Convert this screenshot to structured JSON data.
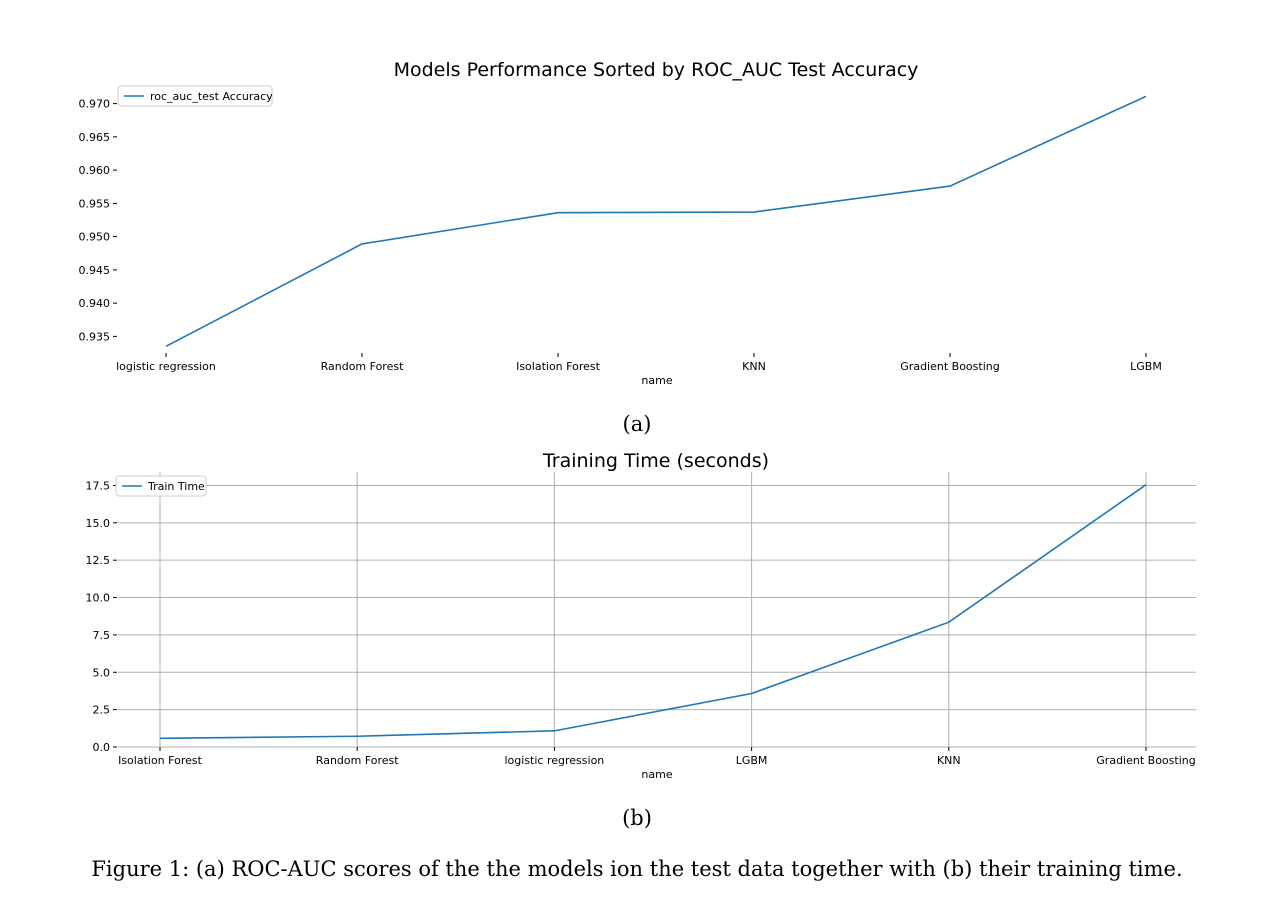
{
  "chart_data": [
    {
      "type": "line",
      "title": "Models Performance Sorted by ROC_AUC Test Accuracy",
      "xlabel": "name",
      "ylabel": "",
      "categories": [
        "logistic regression",
        "Random Forest",
        "Isolation Forest",
        "KNN",
        "Gradient Boosting",
        "LGBM"
      ],
      "series": [
        {
          "name": "roc_auc_test Accuracy",
          "values": [
            0.9335,
            0.9489,
            0.9536,
            0.9537,
            0.9576,
            0.9711
          ],
          "color": "#1f77b4"
        }
      ],
      "yticks": [
        "0.935",
        "0.940",
        "0.945",
        "0.950",
        "0.955",
        "0.960",
        "0.965",
        "0.970"
      ],
      "ylim": [
        0.9325,
        0.9725
      ],
      "grid": false,
      "legend_position": "top-left"
    },
    {
      "type": "line",
      "title": "Training Time (seconds)",
      "xlabel": "name",
      "ylabel": "",
      "categories": [
        "Isolation Forest",
        "Random Forest",
        "logistic regression",
        "LGBM",
        "KNN",
        "Gradient Boosting"
      ],
      "series": [
        {
          "name": "Train Time",
          "values": [
            0.58,
            0.72,
            1.08,
            3.58,
            8.35,
            17.55
          ],
          "color": "#1f77b4"
        }
      ],
      "yticks": [
        "0.0",
        "2.5",
        "5.0",
        "7.5",
        "10.0",
        "12.5",
        "15.0",
        "17.5"
      ],
      "ylim": [
        0,
        18.4
      ],
      "grid": true,
      "legend_position": "top-left"
    }
  ],
  "labels": {
    "panel_a": "(a)",
    "panel_b": "(b)"
  },
  "caption": "Figure 1: (a) ROC-AUC scores of the the models ion the test data together with (b) their training time."
}
